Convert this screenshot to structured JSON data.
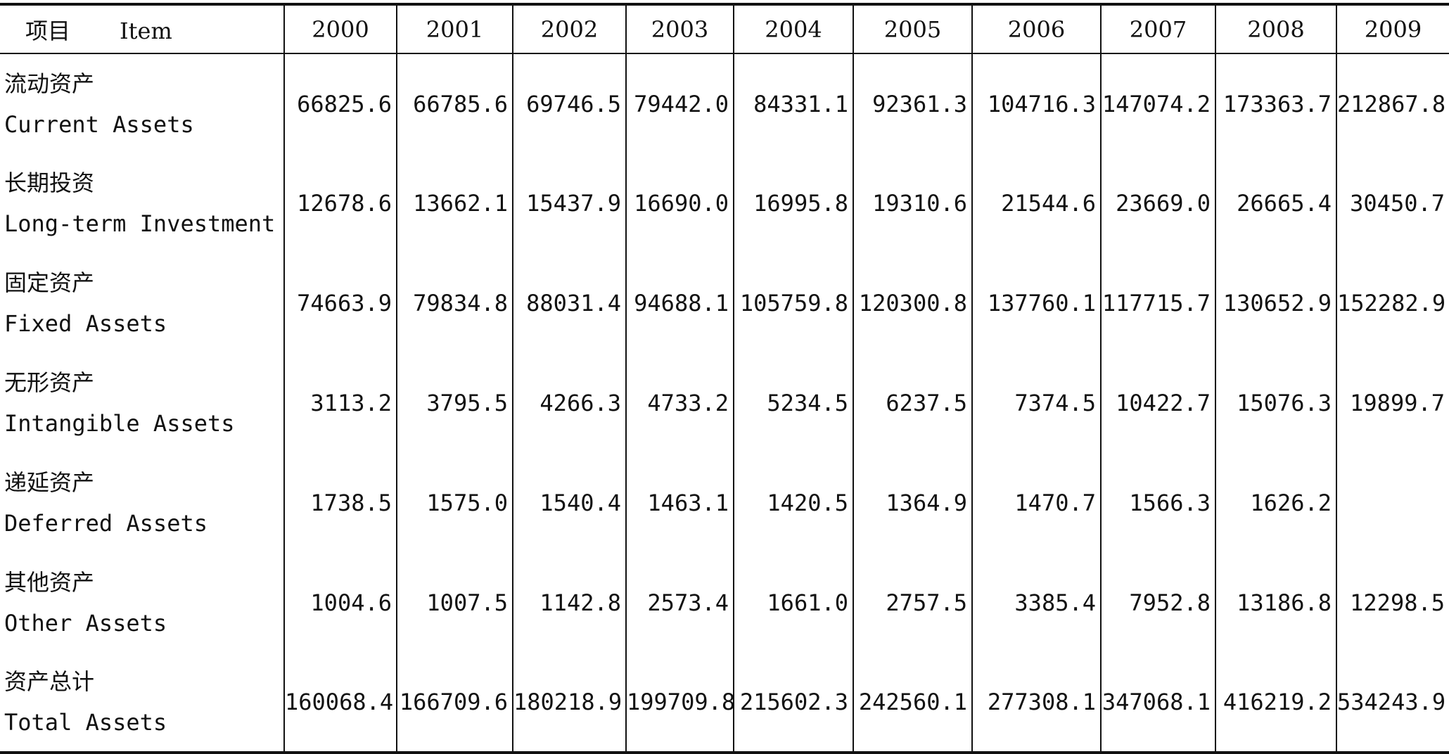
{
  "table": {
    "header": {
      "item_cn": "项目",
      "item_en": "Item",
      "years": [
        "2000",
        "2001",
        "2002",
        "2003",
        "2004",
        "2005",
        "2006",
        "2007",
        "2008",
        "2009"
      ]
    },
    "rows": [
      {
        "label_cn": "流动资产",
        "label_en": "Current Assets",
        "values": [
          "66825.6",
          "66785.6",
          "69746.5",
          "79442.0",
          "84331.1",
          "92361.3",
          "104716.3",
          "147074.2",
          "173363.7",
          "212867.8"
        ]
      },
      {
        "label_cn": "长期投资",
        "label_en": "Long-term Investment",
        "values": [
          "12678.6",
          "13662.1",
          "15437.9",
          "16690.0",
          "16995.8",
          "19310.6",
          "21544.6",
          "23669.0",
          "26665.4",
          "30450.7"
        ]
      },
      {
        "label_cn": "固定资产",
        "label_en": "Fixed Assets",
        "values": [
          "74663.9",
          "79834.8",
          "88031.4",
          "94688.1",
          "105759.8",
          "120300.8",
          "137760.1",
          "117715.7",
          "130652.9",
          "152282.9"
        ]
      },
      {
        "label_cn": "无形资产",
        "label_en": "Intangible Assets",
        "values": [
          "3113.2",
          "3795.5",
          "4266.3",
          "4733.2",
          "5234.5",
          "6237.5",
          "7374.5",
          "10422.7",
          "15076.3",
          "19899.7"
        ]
      },
      {
        "label_cn": "递延资产",
        "label_en": "Deferred Assets",
        "values": [
          "1738.5",
          "1575.0",
          "1540.4",
          "1463.1",
          "1420.5",
          "1364.9",
          "1470.7",
          "1566.3",
          "1626.2",
          ""
        ]
      },
      {
        "label_cn": "其他资产",
        "label_en": "Other Assets",
        "values": [
          "1004.6",
          "1007.5",
          "1142.8",
          "2573.4",
          "1661.0",
          "2757.5",
          "3385.4",
          "7952.8",
          "13186.8",
          "12298.5"
        ]
      },
      {
        "label_cn": "资产总计",
        "label_en": "Total Assets",
        "values": [
          "160068.4",
          "166709.6",
          "180218.9",
          "199709.8",
          "215602.3",
          "242560.1",
          "277308.1",
          "347068.1",
          "416219.2",
          "534243.9"
        ]
      }
    ]
  }
}
